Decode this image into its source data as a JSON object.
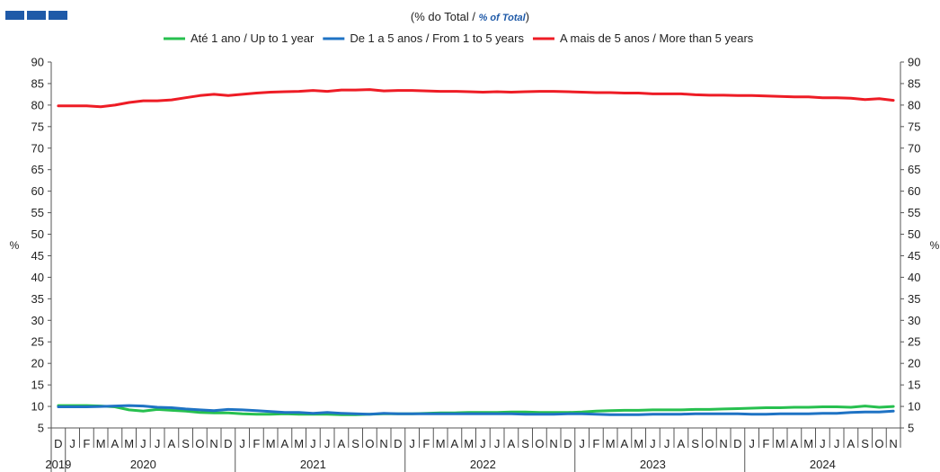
{
  "header": {
    "title_pt": "(% do Total  / ",
    "title_en": "% of Total",
    "title_close": ")"
  },
  "colors": {
    "series_up_to_1": "#27c04f",
    "series_1_to_5": "#1f73c4",
    "series_more_than_5": "#ee1c25",
    "logo": "#1f5aa8"
  },
  "chart_data": {
    "type": "line",
    "ylabel_left": "%",
    "ylabel_right": "%",
    "ylim": [
      5,
      90
    ],
    "yticks": [
      5,
      10,
      15,
      20,
      25,
      30,
      35,
      40,
      45,
      50,
      55,
      60,
      65,
      70,
      75,
      80,
      85,
      90
    ],
    "grid": false,
    "legend_position": "top-center",
    "x_month_labels": [
      "D",
      "J",
      "F",
      "M",
      "A",
      "M",
      "J",
      "J",
      "A",
      "S",
      "O",
      "N",
      "D",
      "J",
      "F",
      "M",
      "A",
      "M",
      "J",
      "J",
      "A",
      "S",
      "O",
      "N",
      "D",
      "J",
      "F",
      "M",
      "A",
      "M",
      "J",
      "J",
      "A",
      "S",
      "O",
      "N",
      "D",
      "J",
      "F",
      "M",
      "A",
      "M",
      "J",
      "J",
      "A",
      "S",
      "O",
      "N",
      "D",
      "J",
      "F",
      "M",
      "A",
      "M",
      "J",
      "J",
      "A",
      "S",
      "O",
      "N"
    ],
    "x_year_labels": [
      "2019",
      "2020",
      "2021",
      "2022",
      "2023",
      "2024"
    ],
    "series": [
      {
        "name": "Até 1 ano / Up to 1 year",
        "values": [
          10.2,
          10.2,
          10.2,
          10.1,
          9.9,
          9.2,
          8.9,
          9.3,
          9.1,
          8.9,
          8.6,
          8.5,
          8.5,
          8.3,
          8.2,
          8.2,
          8.3,
          8.2,
          8.2,
          8.2,
          8.1,
          8.1,
          8.2,
          8.3,
          8.3,
          8.3,
          8.4,
          8.5,
          8.5,
          8.6,
          8.6,
          8.6,
          8.7,
          8.7,
          8.6,
          8.6,
          8.6,
          8.7,
          8.9,
          9.0,
          9.1,
          9.1,
          9.2,
          9.2,
          9.2,
          9.3,
          9.3,
          9.4,
          9.5,
          9.6,
          9.7,
          9.7,
          9.8,
          9.8,
          9.9,
          9.9,
          9.8,
          10.1,
          9.8,
          10.0
        ]
      },
      {
        "name": "De 1 a 5 anos / From 1 to 5 years",
        "values": [
          9.9,
          9.9,
          9.9,
          10.0,
          10.1,
          10.2,
          10.1,
          9.8,
          9.7,
          9.4,
          9.2,
          9.0,
          9.3,
          9.2,
          9.0,
          8.8,
          8.6,
          8.6,
          8.4,
          8.6,
          8.4,
          8.3,
          8.2,
          8.4,
          8.3,
          8.3,
          8.3,
          8.3,
          8.3,
          8.3,
          8.3,
          8.3,
          8.3,
          8.2,
          8.2,
          8.2,
          8.3,
          8.3,
          8.2,
          8.1,
          8.1,
          8.1,
          8.2,
          8.2,
          8.2,
          8.3,
          8.3,
          8.3,
          8.3,
          8.2,
          8.2,
          8.3,
          8.3,
          8.3,
          8.4,
          8.4,
          8.6,
          8.7,
          8.7,
          8.9
        ]
      },
      {
        "name": "A mais de 5 anos / More than 5 years",
        "values": [
          79.8,
          79.8,
          79.8,
          79.6,
          80.0,
          80.6,
          81.0,
          81.0,
          81.2,
          81.7,
          82.2,
          82.5,
          82.2,
          82.5,
          82.8,
          83.0,
          83.1,
          83.2,
          83.4,
          83.2,
          83.5,
          83.5,
          83.6,
          83.3,
          83.4,
          83.4,
          83.3,
          83.2,
          83.2,
          83.1,
          83.0,
          83.1,
          83.0,
          83.1,
          83.2,
          83.2,
          83.1,
          83.0,
          82.9,
          82.9,
          82.8,
          82.8,
          82.6,
          82.6,
          82.6,
          82.4,
          82.3,
          82.3,
          82.2,
          82.2,
          82.1,
          82.0,
          81.9,
          81.9,
          81.7,
          81.7,
          81.6,
          81.3,
          81.5,
          81.1
        ]
      }
    ]
  }
}
